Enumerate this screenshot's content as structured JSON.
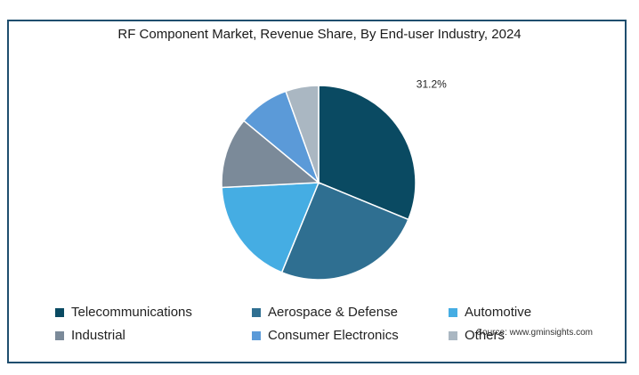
{
  "chart_data": {
    "type": "pie",
    "title": "RF Component Market, Revenue Share, By End-user Industry, 2024",
    "slices": [
      {
        "label": "Telecommunications",
        "value": 31.2,
        "color": "#0a4a62",
        "data_label": "31.2%"
      },
      {
        "label": "Aerospace & Defense",
        "value": 25.0,
        "color": "#2f6f91",
        "data_label": ""
      },
      {
        "label": "Automotive",
        "value": 18.0,
        "color": "#45ade3",
        "data_label": ""
      },
      {
        "label": "Industrial",
        "value": 11.8,
        "color": "#7b8a99",
        "data_label": ""
      },
      {
        "label": "Consumer Electronics",
        "value": 8.5,
        "color": "#5b9ad8",
        "data_label": ""
      },
      {
        "label": "Others",
        "value": 5.5,
        "color": "#aab7c2",
        "data_label": ""
      }
    ],
    "legend_position": "bottom"
  },
  "source": "Source: www.gminsights.com"
}
